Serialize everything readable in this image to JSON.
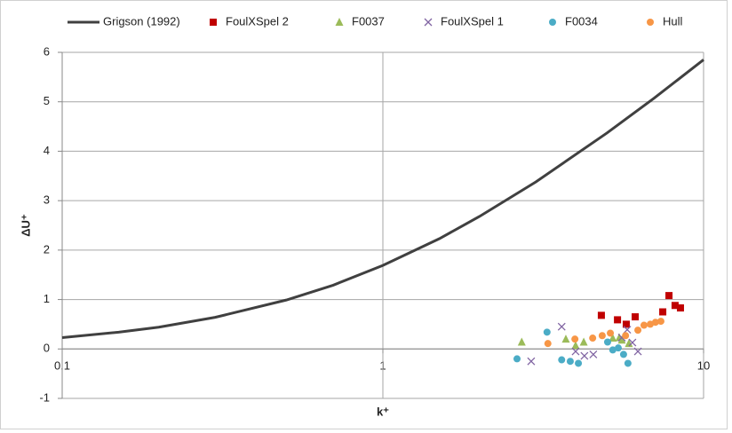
{
  "chart_data": {
    "type": "scatter",
    "x_label": "k⁺",
    "y_label": "ΔU⁺",
    "xscale": "log",
    "xlim": [
      0.1,
      10
    ],
    "xticks": [
      0.1,
      1,
      10
    ],
    "ylim": [
      -1,
      6
    ],
    "yticks": [
      -1,
      0,
      1,
      2,
      3,
      4,
      5,
      6
    ],
    "grid": true,
    "legend": "top",
    "series": [
      {
        "name": "Grigson (1992)",
        "color": "#404040",
        "mode": "line",
        "x": [
          0.1,
          0.15,
          0.2,
          0.3,
          0.5,
          0.7,
          1,
          1.5,
          2,
          3,
          5,
          7,
          10
        ],
        "values": [
          0.23,
          0.34,
          0.44,
          0.64,
          0.99,
          1.29,
          1.69,
          2.23,
          2.68,
          3.38,
          4.37,
          5.07,
          5.85
        ]
      },
      {
        "name": "FoulXSpel 2",
        "color": "#c00000",
        "mode": "square",
        "x": [
          4.8,
          5.39,
          5.74,
          6.12,
          7.46,
          7.8,
          8.15,
          8.47
        ],
        "values": [
          0.68,
          0.59,
          0.5,
          0.65,
          0.75,
          1.08,
          0.88,
          0.83
        ]
      },
      {
        "name": "F0037",
        "color": "#9bbb59",
        "mode": "triangle",
        "x": [
          2.71,
          3.72,
          3.99,
          4.23,
          5.21,
          5.46,
          5.56,
          5.85
        ],
        "values": [
          0.14,
          0.2,
          0.07,
          0.14,
          0.22,
          0.23,
          0.18,
          0.11
        ]
      },
      {
        "name": "FoulXSpel 1",
        "color": "#8064a2",
        "mode": "cross",
        "x": [
          2.9,
          3.61,
          3.99,
          4.25,
          4.53,
          5.56,
          5.78,
          6.0,
          6.24
        ],
        "values": [
          -0.25,
          0.45,
          -0.05,
          -0.14,
          -0.11,
          0.23,
          0.39,
          0.13,
          -0.05
        ]
      },
      {
        "name": "F0034",
        "color": "#4bacc6",
        "mode": "circle",
        "x": [
          2.62,
          3.25,
          3.61,
          3.84,
          4.07,
          5.02,
          5.21,
          5.42,
          5.63,
          5.81
        ],
        "values": [
          -0.2,
          0.34,
          -0.22,
          -0.25,
          -0.29,
          0.14,
          -0.02,
          0.02,
          -0.11,
          -0.29
        ]
      },
      {
        "name": "Hull",
        "color": "#f79646",
        "mode": "circle",
        "x": [
          3.27,
          3.97,
          4.51,
          4.83,
          5.12,
          5.71,
          6.24,
          6.52,
          6.82,
          7.08,
          7.36
        ],
        "values": [
          0.11,
          0.2,
          0.22,
          0.27,
          0.32,
          0.27,
          0.38,
          0.48,
          0.5,
          0.54,
          0.56
        ]
      }
    ]
  }
}
